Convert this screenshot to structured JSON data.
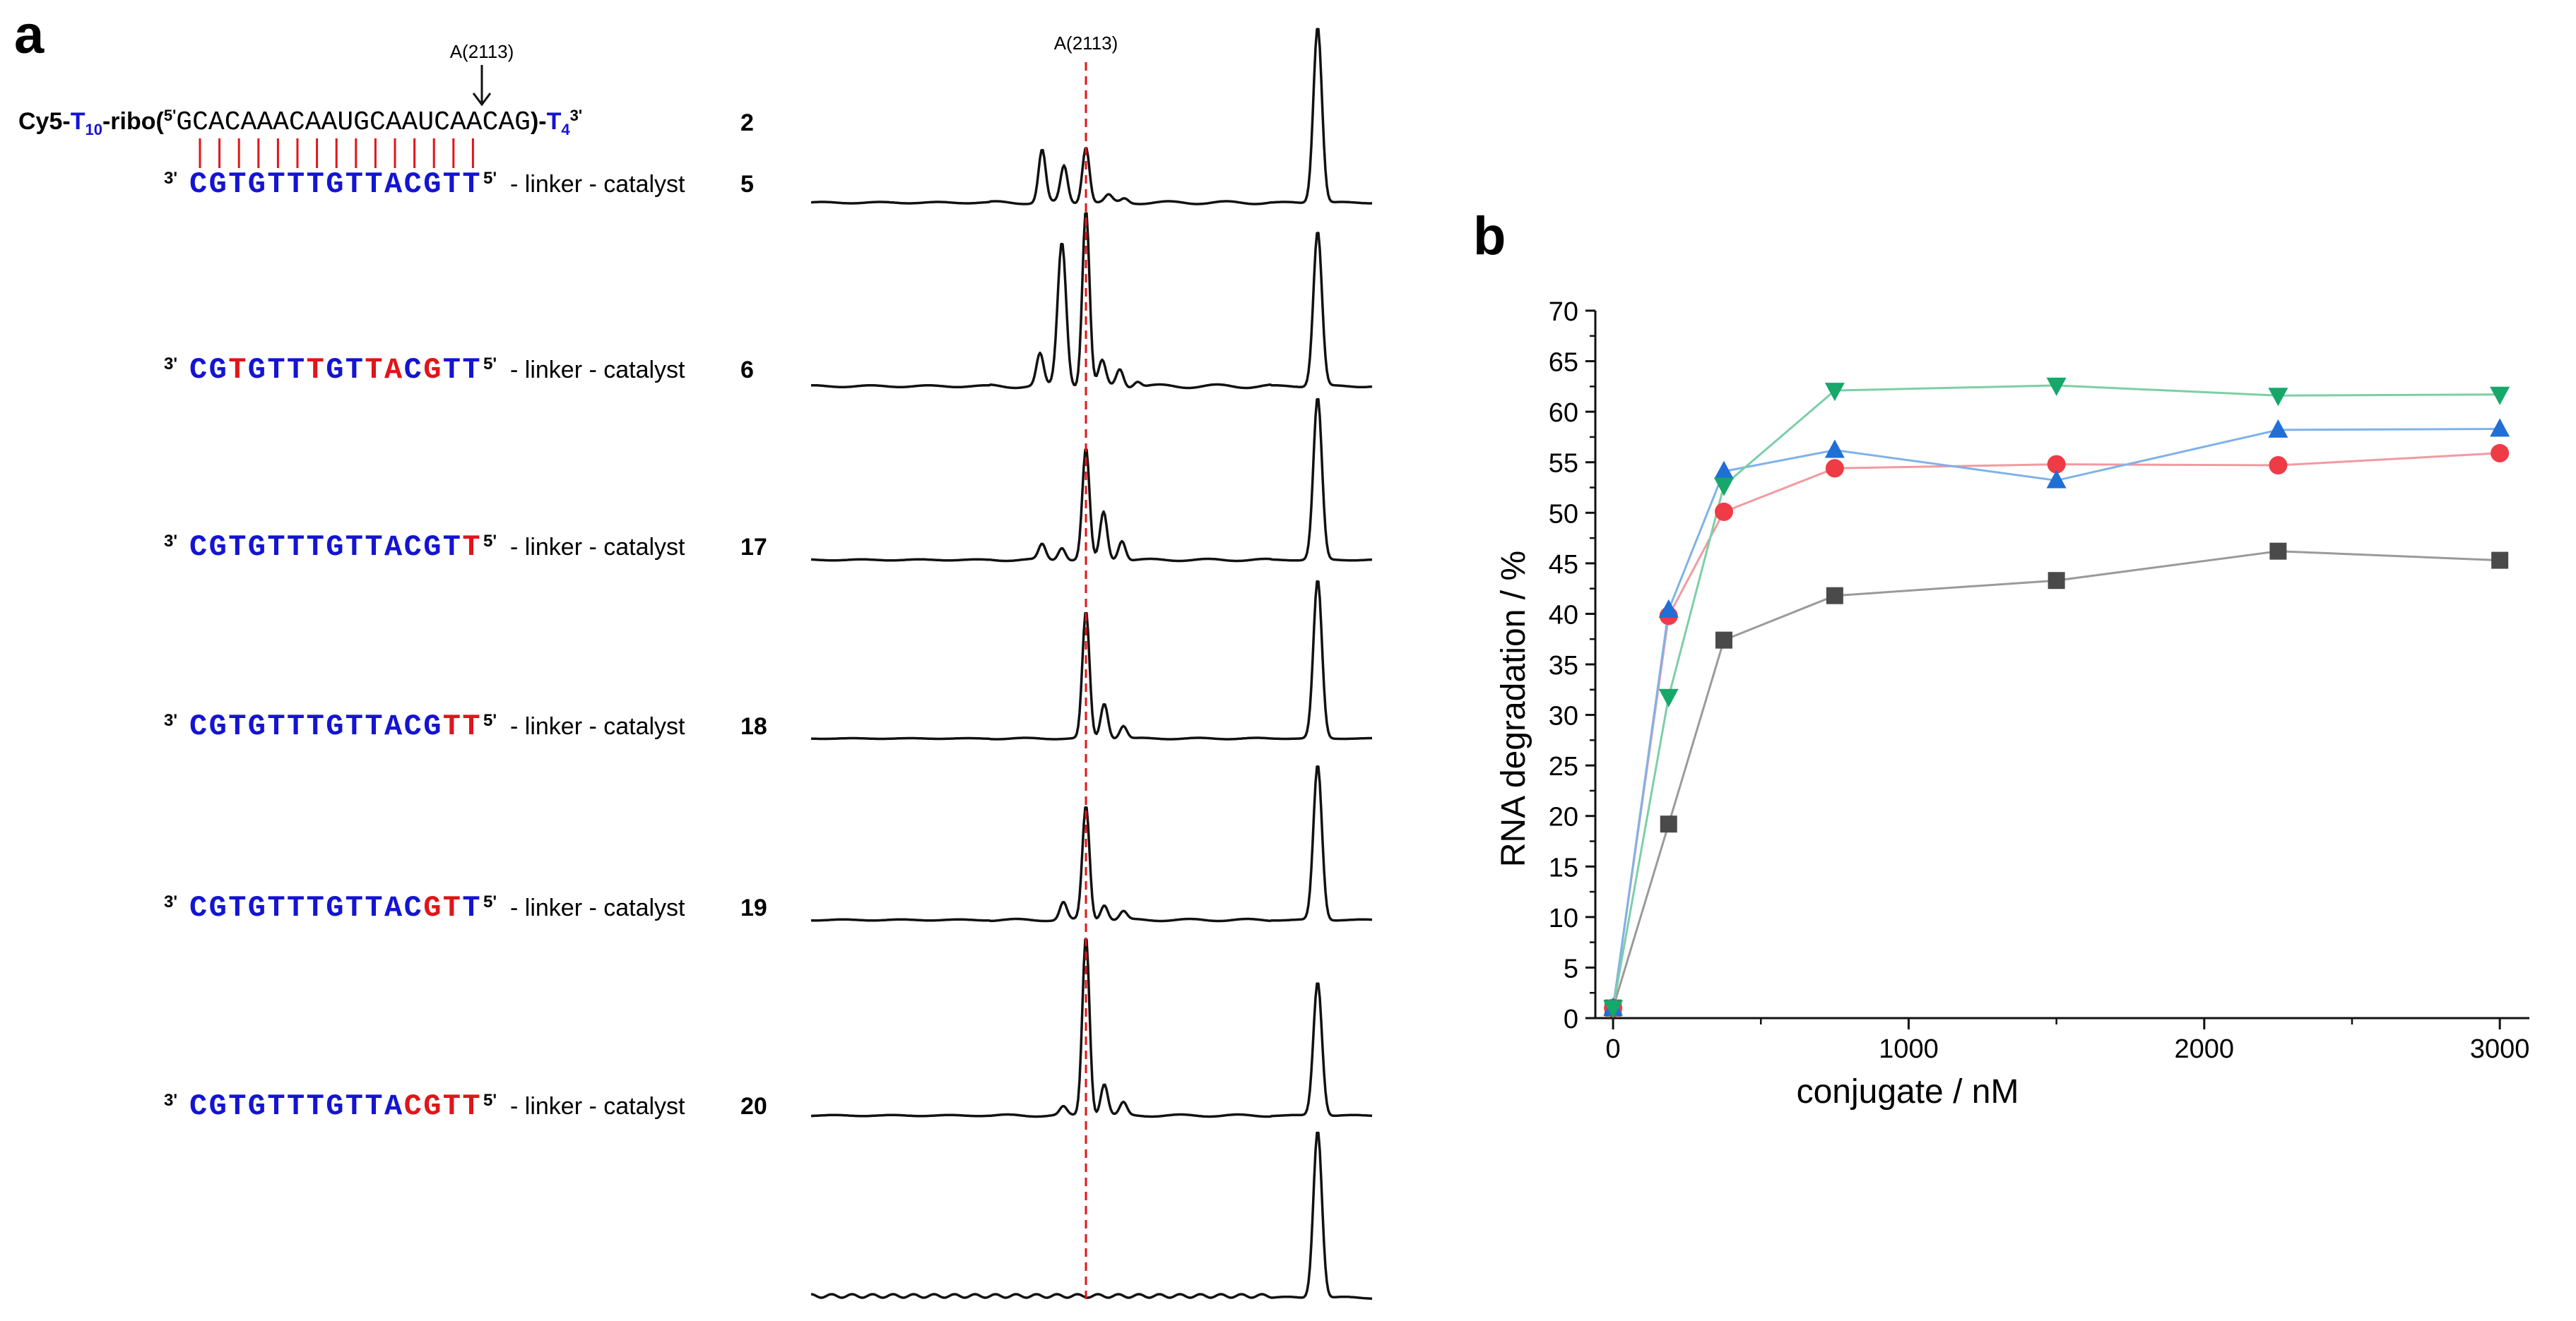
{
  "panel_a": {
    "label": "a",
    "cut_site_label": "A(2113)",
    "substrate": {
      "prefix": "Cy5-",
      "t10_base": "T",
      "t10_sub": "10",
      "ribo": "-ribo(",
      "five_prime": "5'",
      "sequence": "GCACAAACAAUGCAAUCAACAG",
      "close": ")-",
      "t4_base": "T",
      "t4_sub": "4",
      "three_prime": "3'",
      "number": "2"
    },
    "end_3": "3'",
    "end_5": "5'",
    "linker_text": "- linker - catalyst",
    "conjugates": [
      {
        "number": "5",
        "bases": [
          "C",
          "G",
          "T",
          "G",
          "T",
          "T",
          "T",
          "G",
          "T",
          "T",
          "A",
          "C",
          "G",
          "T",
          "T"
        ],
        "red": [
          0,
          0,
          0,
          0,
          0,
          0,
          0,
          0,
          0,
          0,
          0,
          0,
          0,
          0,
          0
        ]
      },
      {
        "number": "6",
        "bases": [
          "C",
          "G",
          "T",
          "G",
          "T",
          "T",
          "T",
          "G",
          "T",
          "T",
          "A",
          "C",
          "G",
          "T",
          "T"
        ],
        "red": [
          0,
          0,
          1,
          0,
          0,
          0,
          1,
          0,
          0,
          1,
          1,
          0,
          1,
          0,
          0
        ]
      },
      {
        "number": "17",
        "bases": [
          "C",
          "G",
          "T",
          "G",
          "T",
          "T",
          "T",
          "G",
          "T",
          "T",
          "A",
          "C",
          "G",
          "T",
          "T"
        ],
        "red": [
          0,
          0,
          0,
          0,
          0,
          0,
          0,
          0,
          0,
          0,
          0,
          0,
          0,
          0,
          1
        ]
      },
      {
        "number": "18",
        "bases": [
          "C",
          "G",
          "T",
          "G",
          "T",
          "T",
          "T",
          "G",
          "T",
          "T",
          "A",
          "C",
          "G",
          "T",
          "T"
        ],
        "red": [
          0,
          0,
          0,
          0,
          0,
          0,
          0,
          0,
          0,
          0,
          0,
          0,
          0,
          1,
          1
        ]
      },
      {
        "number": "19",
        "bases": [
          "C",
          "G",
          "T",
          "G",
          "T",
          "T",
          "T",
          "G",
          "T",
          "T",
          "A",
          "C",
          "G",
          "T",
          "T"
        ],
        "red": [
          0,
          0,
          0,
          0,
          0,
          0,
          0,
          0,
          0,
          0,
          0,
          0,
          1,
          1,
          0
        ]
      },
      {
        "number": "20",
        "bases": [
          "C",
          "G",
          "T",
          "G",
          "T",
          "T",
          "T",
          "G",
          "T",
          "T",
          "A",
          "C",
          "G",
          "T",
          "T"
        ],
        "red": [
          0,
          0,
          0,
          0,
          0,
          0,
          0,
          0,
          0,
          0,
          0,
          1,
          1,
          1,
          1
        ]
      }
    ],
    "colors": {
      "blue": "#1414d2",
      "red": "#e0151b",
      "black": "#111111",
      "pairing": "#e0151b",
      "cut_line": "#e0151b"
    }
  },
  "chart_data": {
    "type": "line",
    "panel_label": "b",
    "title": "",
    "xlabel": "conjugate / nM",
    "ylabel": "RNA degradation / %",
    "xlim": [
      -60,
      3100
    ],
    "ylim": [
      0,
      70
    ],
    "xticks": [
      0,
      1000,
      2000,
      3000
    ],
    "yticks": [
      0,
      5,
      10,
      15,
      20,
      25,
      30,
      35,
      40,
      45,
      50,
      55,
      60,
      65,
      70
    ],
    "x": [
      0,
      188,
      375,
      750,
      1500,
      2250,
      3000
    ],
    "series": [
      {
        "name": "gray squares",
        "marker": "square",
        "color": "#4a4a4a",
        "line_color": "#9a9a9a",
        "values": [
          1,
          19.2,
          37.4,
          41.8,
          43.3,
          46.2,
          45.3
        ]
      },
      {
        "name": "red circles",
        "marker": "circle",
        "color": "#ef3b45",
        "line_color": "#f29aa0",
        "values": [
          1,
          39.8,
          50.1,
          54.4,
          54.8,
          54.7,
          55.9
        ]
      },
      {
        "name": "blue triangles",
        "marker": "triangle",
        "color": "#1f6fd6",
        "line_color": "#7fb2e8",
        "values": [
          1,
          40.4,
          54.1,
          56.2,
          53.2,
          58.2,
          58.3
        ]
      },
      {
        "name": "green down-triangles",
        "marker": "triangle-down",
        "color": "#15a86a",
        "line_color": "#7ccfa6",
        "values": [
          1,
          31.8,
          52.7,
          62.1,
          62.6,
          61.6,
          61.7
        ]
      }
    ]
  }
}
